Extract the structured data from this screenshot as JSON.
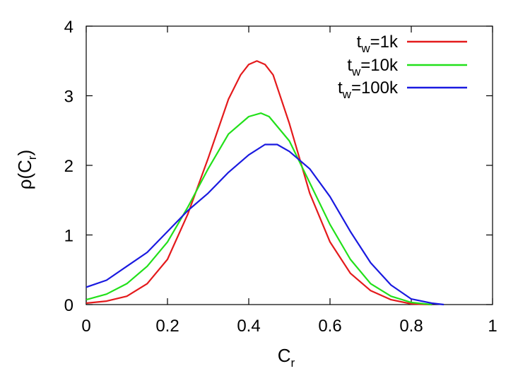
{
  "chart_data": {
    "type": "line",
    "xlabel": {
      "base": "C",
      "sub": "r"
    },
    "ylabel": {
      "base": "ρ(C",
      "sub": "r",
      "tail": ")"
    },
    "xlim": [
      0,
      1
    ],
    "ylim": [
      0,
      4
    ],
    "x_ticks": [
      "0",
      "0.2",
      "0.4",
      "0.6",
      "0.8",
      "1"
    ],
    "y_ticks": [
      "0",
      "1",
      "2",
      "3",
      "4"
    ],
    "grid": false,
    "legend_position": "top-right",
    "series": [
      {
        "name": {
          "base": "t",
          "sub": "w",
          "tail": "=1k"
        },
        "color": "#e41a1c",
        "x": [
          0.0,
          0.05,
          0.1,
          0.15,
          0.2,
          0.25,
          0.3,
          0.35,
          0.38,
          0.4,
          0.42,
          0.44,
          0.46,
          0.5,
          0.55,
          0.6,
          0.65,
          0.7,
          0.75,
          0.8,
          0.85
        ],
        "y": [
          0.02,
          0.05,
          0.12,
          0.3,
          0.65,
          1.3,
          2.1,
          2.95,
          3.3,
          3.45,
          3.5,
          3.45,
          3.3,
          2.6,
          1.6,
          0.9,
          0.45,
          0.2,
          0.07,
          0.01,
          0.0
        ]
      },
      {
        "name": {
          "base": "t",
          "sub": "w",
          "tail": "=10k"
        },
        "color": "#22e01a",
        "x": [
          0.0,
          0.05,
          0.1,
          0.15,
          0.2,
          0.25,
          0.3,
          0.35,
          0.4,
          0.43,
          0.45,
          0.5,
          0.55,
          0.6,
          0.65,
          0.7,
          0.75,
          0.8,
          0.85
        ],
        "y": [
          0.07,
          0.15,
          0.3,
          0.55,
          0.9,
          1.4,
          1.95,
          2.45,
          2.7,
          2.75,
          2.7,
          2.35,
          1.75,
          1.15,
          0.65,
          0.3,
          0.12,
          0.03,
          0.0
        ]
      },
      {
        "name": {
          "base": "t",
          "sub": "w",
          "tail": "=100k"
        },
        "color": "#1a1ae0",
        "x": [
          0.0,
          0.05,
          0.1,
          0.15,
          0.2,
          0.25,
          0.3,
          0.35,
          0.4,
          0.44,
          0.47,
          0.5,
          0.55,
          0.6,
          0.65,
          0.7,
          0.75,
          0.8,
          0.85,
          0.88
        ],
        "y": [
          0.25,
          0.35,
          0.55,
          0.75,
          1.05,
          1.35,
          1.6,
          1.9,
          2.15,
          2.3,
          2.3,
          2.2,
          1.95,
          1.55,
          1.05,
          0.6,
          0.28,
          0.08,
          0.02,
          0.0
        ]
      }
    ]
  }
}
